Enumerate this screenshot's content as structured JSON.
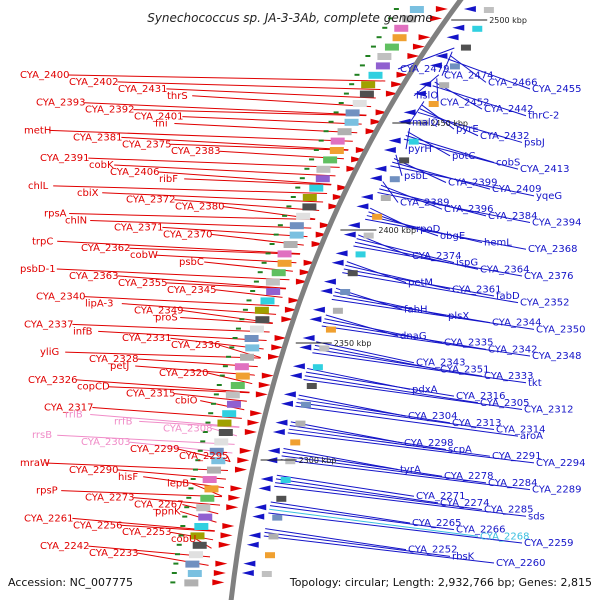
{
  "title": "Synechococcus sp. JA-3-3Ab, complete genome",
  "footer": {
    "accession": "Accession: NC_007775",
    "summary": "Topology: circular; Length: 2,932,766 bp; Genes: 2,815"
  },
  "colors": {
    "left": "#e00000",
    "right": "#1414c8",
    "rna": "#f08cc8",
    "highlight": "#3cc0e0",
    "backbone": "#808080"
  },
  "kbp_marks": [
    "2500 kbp",
    "2450 kbp",
    "2400 kbp",
    "2350 kbp",
    "2300 kbp"
  ],
  "left_labels": [
    "CYA_2400",
    "CYA_2402",
    "CYA_2431",
    "thrS",
    "CYA_2393",
    "CYA_2392",
    "CYA_2401",
    "fni",
    "metH",
    "CYA_2381",
    "CYA_2375",
    "CYA_2383",
    "CYA_2391",
    "cobK",
    "CYA_2406",
    "ribF",
    "chlL",
    "cbiX",
    "CYA_2372",
    "CYA_2380",
    "rpsA",
    "chlN",
    "CYA_2371",
    "CYA_2370",
    "trpC",
    "CYA_2362",
    "cobW",
    "psbC",
    "psbD-1",
    "CYA_2363",
    "CYA_2355",
    "CYA_2345",
    "CYA_2340",
    "lipA-3",
    "CYA_2349",
    "proS",
    "CYA_2337",
    "infB",
    "CYA_2331",
    "CYA_2336",
    "yliG",
    "CYA_2328",
    "petJ",
    "CYA_2320",
    "CYA_2326",
    "copCD",
    "CYA_2315",
    "cbiO",
    "CYA_2317",
    "rrlB",
    "rrfB",
    "CYA_2308",
    "rrsB",
    "CYA_2303",
    "CYA_2299",
    "CYA_2295",
    "mraW",
    "CYA_2290",
    "hisF",
    "lepB",
    "rpsP",
    "CYA_2273",
    "CYA_2267",
    "ppnK",
    "CYA_2261",
    "CYA_2256",
    "CYA_2253",
    "cobU",
    "CYA_2242",
    "CYA_2233"
  ],
  "right_labels": [
    "CYA_2479",
    "CYA_2474",
    "CYA_2466",
    "CYA_2455",
    "hslO",
    "CYA_2452",
    "CYA_2442",
    "thrC-2",
    "malQ",
    "pyrE",
    "CYA_2432",
    "psbJ",
    "pyrH",
    "potC",
    "cobS",
    "CYA_2413",
    "psbL",
    "CYA_2399",
    "CYA_2409",
    "yqeG",
    "CYA_2389",
    "CYA_2396",
    "CYA_2384",
    "CYA_2394",
    "rpoD",
    "obgE",
    "hemL",
    "CYA_2368",
    "CYA_2374",
    "ispG",
    "CYA_2364",
    "CYA_2376",
    "petM",
    "CYA_2361",
    "fabD",
    "CYA_2352",
    "fabH",
    "plsX",
    "CYA_2344",
    "CYA_2350",
    "dnaG",
    "CYA_2335",
    "CYA_2342",
    "CYA_2348",
    "CYA_2343",
    "CYA_2351",
    "CYA_2333",
    "tkt",
    "pdxA",
    "CYA_2316",
    "CYA_2305",
    "CYA_2312",
    "CYA_2304",
    "CYA_2313",
    "CYA_2314",
    "aroA",
    "CYA_2298",
    "scpA",
    "CYA_2291",
    "CYA_2294",
    "tyrA",
    "CYA_2278",
    "CYA_2284",
    "CYA_2289",
    "CYA_2271",
    "CYA_2274",
    "CYA_2285",
    "sds",
    "CYA_2265",
    "CYA_2266",
    "CYA_2268",
    "CYA_2259",
    "CYA_2252",
    "rbsK",
    "CYA_2260"
  ]
}
